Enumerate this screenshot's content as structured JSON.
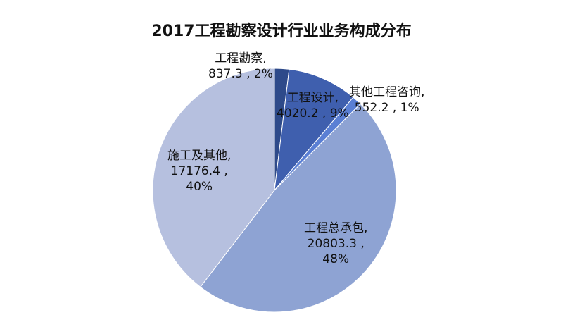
{
  "chart_data": {
    "type": "pie",
    "title": "2017工程勘察设计行业业务构成分布",
    "slices": [
      {
        "name": "工程勘察",
        "value": 837.3,
        "percent": 2,
        "color": "#2e4a8a",
        "label_lines": [
          "工程勘察,",
          "837.3 , 2%"
        ]
      },
      {
        "name": "工程设计",
        "value": 4020.2,
        "percent": 9,
        "color": "#3f5fae",
        "label_lines": [
          "工程设计,",
          "4020.2 , 9%"
        ]
      },
      {
        "name": "其他工程咨询",
        "value": 552.2,
        "percent": 1,
        "color": "#5a7fd4",
        "label_lines": [
          "其他工程咨询,",
          "552.2 , 1%"
        ]
      },
      {
        "name": "工程总承包",
        "value": 20803.3,
        "percent": 48,
        "color": "#8ea3d3",
        "label_lines": [
          "工程总承包,",
          "20803.3 ,",
          "48%"
        ]
      },
      {
        "name": "施工及其他",
        "value": 17176.4,
        "percent": 40,
        "color": "#b6c0df",
        "label_lines": [
          "施工及其他,",
          "17176.4 ,",
          "40%"
        ]
      }
    ]
  }
}
